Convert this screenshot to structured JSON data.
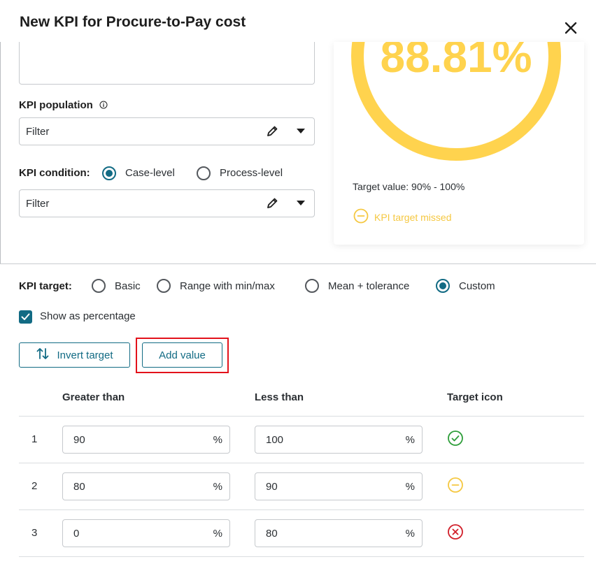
{
  "dialog": {
    "title": "New KPI for Procure-to-Pay cost"
  },
  "kpi_population": {
    "label": "KPI population",
    "filter_value": "Filter"
  },
  "kpi_condition": {
    "label": "KPI condition:",
    "options": [
      "Case-level",
      "Process-level"
    ],
    "selected": "Case-level",
    "filter_value": "Filter"
  },
  "preview": {
    "value_text": "88.81%",
    "target_value": "Target value: 90% - 100%",
    "status_text": "KPI target missed",
    "gauge_color": "#ffd34e"
  },
  "kpi_target": {
    "label": "KPI target:",
    "options": [
      "Basic",
      "Range with min/max",
      "Mean + tolerance",
      "Custom"
    ],
    "selected": "Custom"
  },
  "show_percentage": {
    "label": "Show as percentage",
    "checked": true
  },
  "buttons": {
    "invert_target": "Invert target",
    "add_value": "Add value"
  },
  "table": {
    "headers": [
      "Greater than",
      "Less than",
      "Target icon"
    ],
    "rows": [
      {
        "index": "1",
        "greater": "90",
        "less": "100",
        "unit": "%",
        "icon": "check-circle-icon"
      },
      {
        "index": "2",
        "greater": "80",
        "less": "90",
        "unit": "%",
        "icon": "minus-circle-icon"
      },
      {
        "index": "3",
        "greater": "0",
        "less": "80",
        "unit": "%",
        "icon": "x-circle-icon"
      }
    ]
  },
  "colors": {
    "accent": "#126b84",
    "success": "#2e9e3a",
    "warning": "#f5c842",
    "danger": "#d11f2a",
    "highlight": "#e3121b"
  }
}
